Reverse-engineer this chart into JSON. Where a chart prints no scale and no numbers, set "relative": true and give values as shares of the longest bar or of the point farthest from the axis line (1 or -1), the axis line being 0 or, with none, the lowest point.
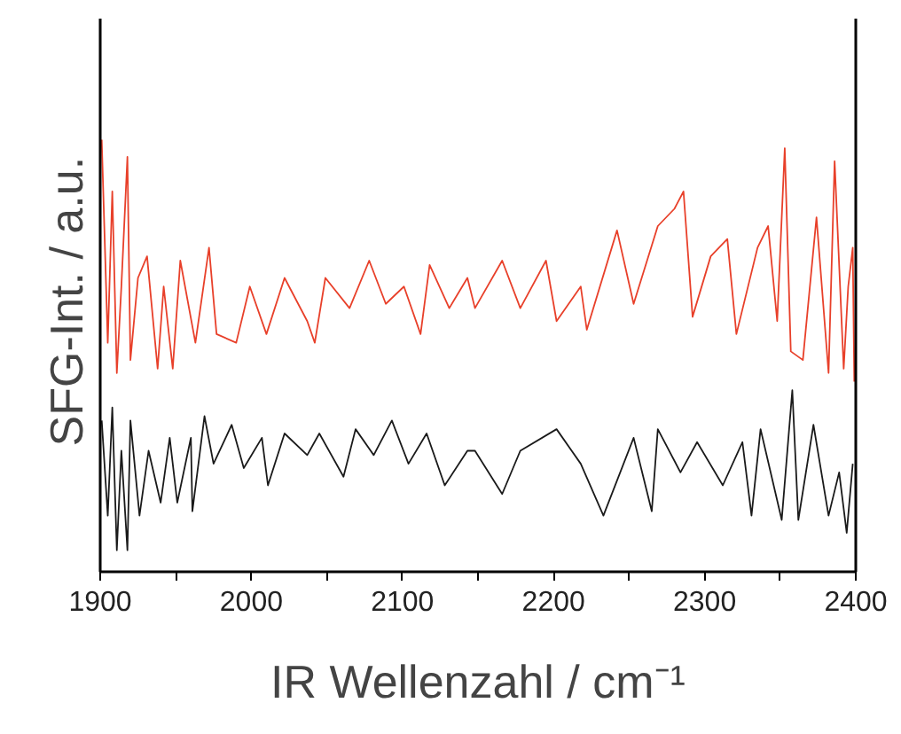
{
  "chart_data": {
    "type": "line",
    "relative": true,
    "xlabel": "IR Wellenzahl / cm⁻¹",
    "ylabel": "SFG-Int.  / a.u.",
    "xlim": [
      1900,
      2400
    ],
    "xticks": [
      1900,
      {
        "value": 1950,
        "label": null
      },
      2000,
      {
        "value": 2050,
        "label": null
      },
      2100,
      {
        "value": 2150,
        "label": null
      },
      2200,
      {
        "value": 2250,
        "label": null
      },
      2300,
      {
        "value": 2350,
        "label": null
      },
      2400
    ],
    "tick_labels": "x",
    "series": [
      {
        "color": "#e8402a",
        "x": [
          1901,
          1905,
          1908,
          1911,
          1914,
          1918,
          1920,
          1925,
          1931,
          1938,
          1942,
          1948,
          1953,
          1963,
          1972,
          1977,
          1990,
          1999,
          2010,
          2022,
          2037,
          2042,
          2049,
          2065,
          2078,
          2089,
          2101,
          2112,
          2118,
          2131,
          2143,
          2148,
          2166,
          2178,
          2195,
          2202,
          2218,
          2222,
          2242,
          2253,
          2269,
          2280,
          2286,
          2292,
          2304,
          2315,
          2321,
          2335,
          2342,
          2348,
          2353,
          2357,
          2365,
          2374,
          2382,
          2386,
          2392,
          2395,
          2398,
          2399
        ],
        "values": [
          1.0,
          0.53,
          0.88,
          0.46,
          0.66,
          0.96,
          0.49,
          0.68,
          0.73,
          0.47,
          0.66,
          0.47,
          0.72,
          0.53,
          0.75,
          0.55,
          0.53,
          0.66,
          0.55,
          0.68,
          0.58,
          0.53,
          0.68,
          0.61,
          0.72,
          0.62,
          0.66,
          0.55,
          0.71,
          0.61,
          0.68,
          0.61,
          0.72,
          0.61,
          0.72,
          0.58,
          0.66,
          0.56,
          0.79,
          0.62,
          0.8,
          0.84,
          0.88,
          0.59,
          0.73,
          0.77,
          0.55,
          0.75,
          0.8,
          0.58,
          0.98,
          0.51,
          0.49,
          0.82,
          0.46,
          0.95,
          0.47,
          0.66,
          0.75,
          0.44
        ]
      },
      {
        "color": "#1a1a1a",
        "x": [
          1901,
          1905,
          1908,
          1911,
          1914,
          1918,
          1920,
          1926,
          1932,
          1940,
          1946,
          1951,
          1960,
          1961,
          1969,
          1975,
          1987,
          1995,
          2007,
          2011,
          2022,
          2037,
          2045,
          2061,
          2069,
          2081,
          2093,
          2104,
          2116,
          2128,
          2143,
          2148,
          2166,
          2178,
          2202,
          2218,
          2233,
          2253,
          2265,
          2269,
          2284,
          2295,
          2312,
          2325,
          2331,
          2337,
          2351,
          2358,
          2362,
          2372,
          2382,
          2389,
          2394,
          2398
        ],
        "values": [
          0.35,
          0.13,
          0.38,
          0.05,
          0.28,
          0.05,
          0.35,
          0.13,
          0.28,
          0.16,
          0.31,
          0.16,
          0.31,
          0.14,
          0.36,
          0.25,
          0.34,
          0.24,
          0.31,
          0.2,
          0.32,
          0.27,
          0.32,
          0.22,
          0.33,
          0.27,
          0.35,
          0.25,
          0.32,
          0.2,
          0.28,
          0.28,
          0.18,
          0.28,
          0.33,
          0.25,
          0.13,
          0.31,
          0.14,
          0.33,
          0.23,
          0.3,
          0.2,
          0.3,
          0.13,
          0.33,
          0.12,
          0.42,
          0.12,
          0.34,
          0.13,
          0.23,
          0.09,
          0.25
        ]
      }
    ]
  }
}
